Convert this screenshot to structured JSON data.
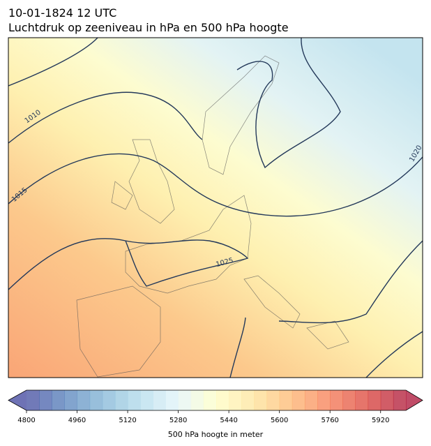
{
  "title": "10-01-1824 12 UTC",
  "subtitle": "Luchtdruk op zeeniveau in hPa en 500 hPa hoogte",
  "isobar_labels": [
    1010,
    1015,
    1020,
    1025
  ],
  "colorbar": {
    "label": "500 hPa hoogte in meter",
    "lim": [
      4800,
      6000
    ],
    "step": 40,
    "ticks": [
      4800,
      4960,
      5120,
      5280,
      5440,
      5600,
      5760,
      5920
    ],
    "colormap": [
      "#313695",
      "#4575b4",
      "#74add1",
      "#abd9e9",
      "#e0f3f8",
      "#ffffbf",
      "#fee090",
      "#fdae61",
      "#f46d43",
      "#d73027",
      "#a50026"
    ],
    "opacity": 0.7
  }
}
